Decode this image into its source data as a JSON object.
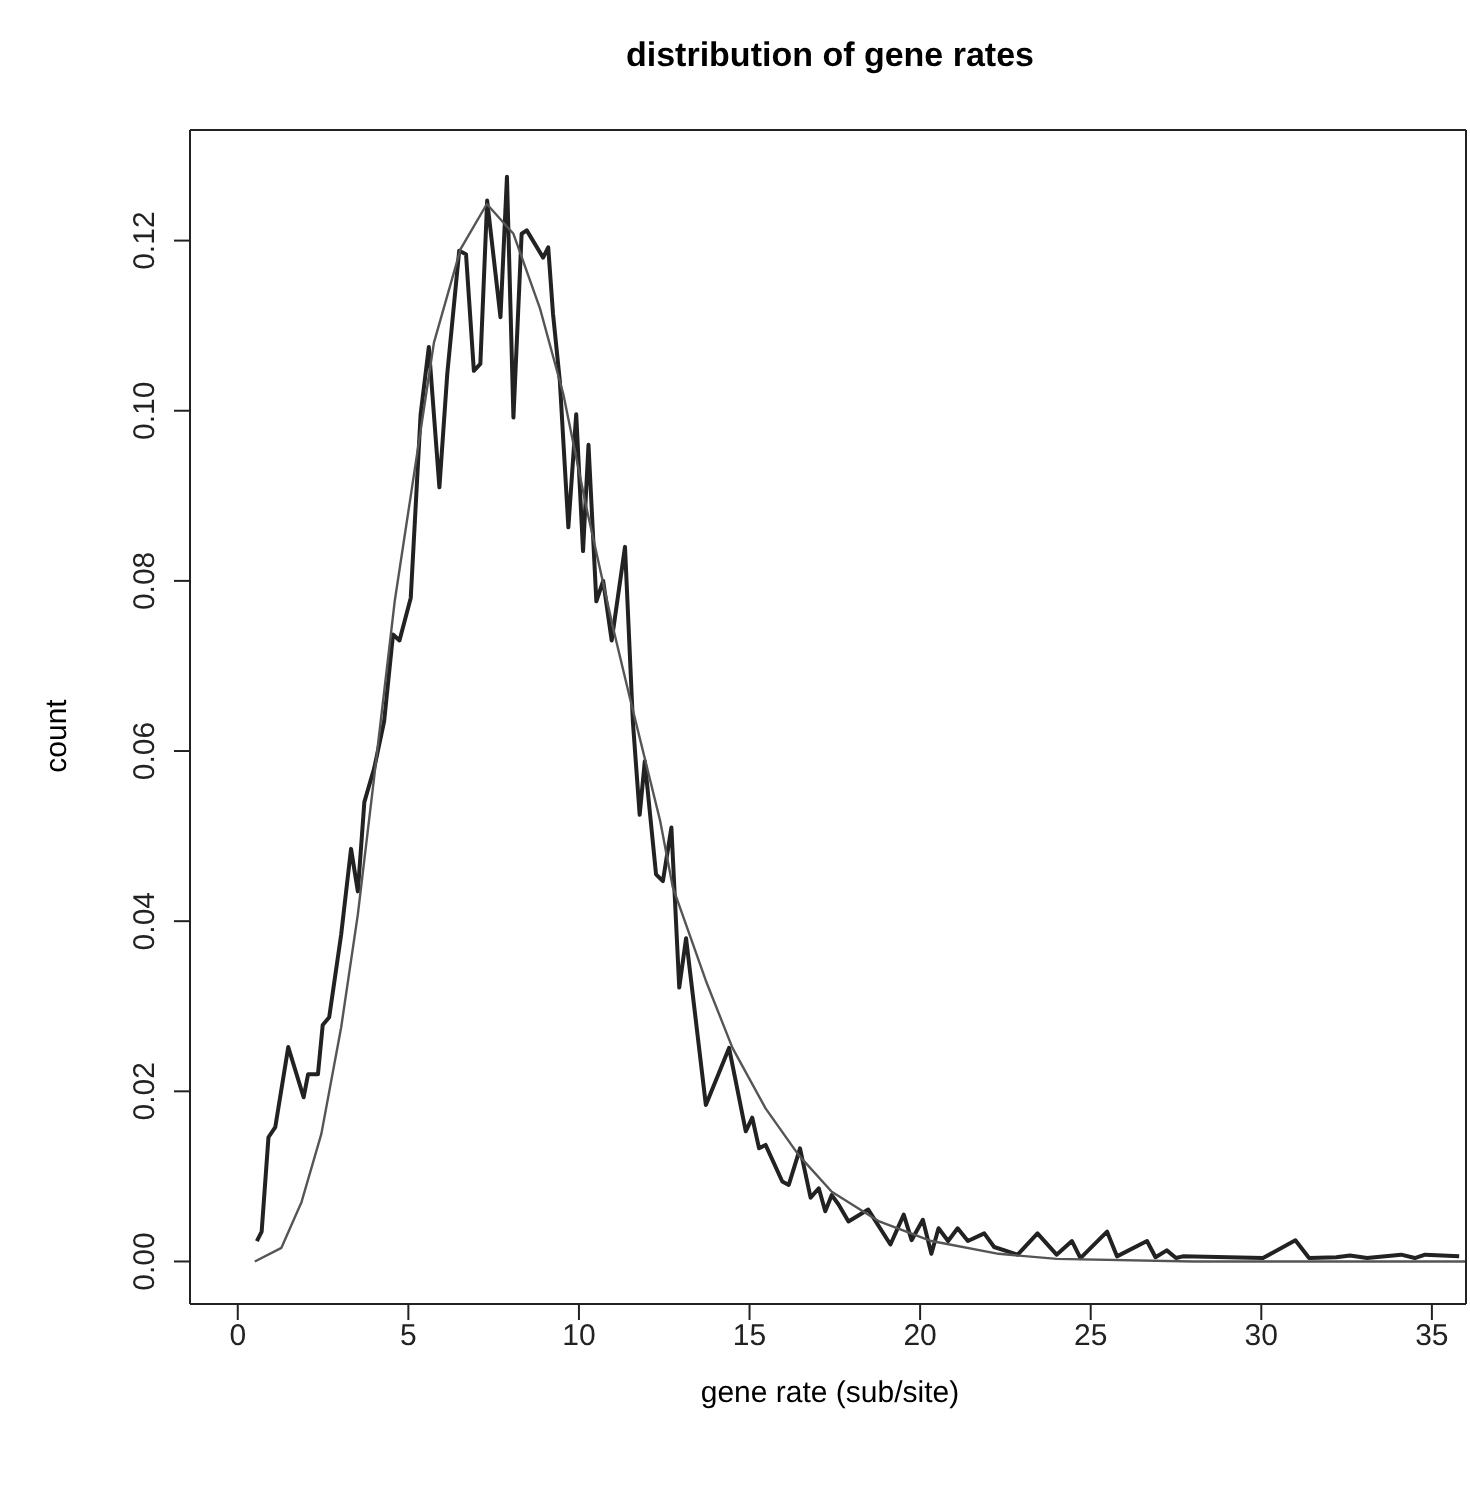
{
  "chart_data": {
    "type": "line",
    "title": "distribution of gene rates",
    "xlabel": "gene rate (sub/site)",
    "ylabel": "count",
    "xlim": [
      -1.4,
      36
    ],
    "ylim": [
      -0.005,
      0.133
    ],
    "xticks": [
      0,
      5,
      10,
      15,
      20,
      25,
      30,
      35
    ],
    "yticks": [
      {
        "value": 0,
        "label": "0.00"
      },
      {
        "value": 0.02,
        "label": "0.02"
      },
      {
        "value": 0.04,
        "label": "0.04"
      },
      {
        "value": 0.06,
        "label": "0.06"
      },
      {
        "value": 0.08,
        "label": "0.08"
      },
      {
        "value": 0.1,
        "label": "0.10"
      },
      {
        "value": 0.12,
        "label": "0.12"
      }
    ],
    "series": [
      {
        "color": "#222222",
        "x": [
          0.56,
          0.7,
          0.9,
          1.1,
          1.48,
          1.93,
          2.06,
          2.35,
          2.49,
          2.68,
          3.03,
          3.32,
          3.52,
          3.71,
          4.0,
          4.29,
          4.55,
          4.74,
          5.07,
          5.36,
          5.6,
          5.91,
          6.14,
          6.49,
          6.69,
          6.92,
          7.11,
          7.31,
          7.7,
          7.89,
          8.08,
          8.32,
          8.47,
          8.95,
          9.1,
          9.24,
          9.44,
          9.69,
          9.92,
          10.12,
          10.28,
          10.51,
          10.71,
          10.96,
          11.35,
          11.58,
          11.78,
          11.93,
          12.26,
          12.46,
          12.71,
          12.94,
          13.14,
          13.72,
          14.4,
          14.89,
          15.08,
          15.28,
          15.47,
          15.96,
          16.15,
          16.48,
          16.79,
          17.03,
          17.22,
          17.41,
          17.61,
          17.9,
          18.48,
          19.13,
          19.52,
          19.75,
          20.08,
          20.33,
          20.54,
          20.82,
          21.1,
          21.4,
          21.88,
          22.17,
          22.86,
          23.44,
          24.0,
          24.45,
          24.7,
          25.48,
          25.77,
          26.65,
          26.9,
          27.23,
          27.5,
          27.7,
          30.05,
          31.0,
          31.4,
          32.2,
          32.6,
          33.1,
          34.1,
          34.5,
          34.8,
          35.8
        ],
        "values": [
          0.0024,
          0.0035,
          0.0146,
          0.0158,
          0.0252,
          0.0193,
          0.022,
          0.022,
          0.0278,
          0.0287,
          0.0384,
          0.0485,
          0.0435,
          0.054,
          0.058,
          0.0635,
          0.0737,
          0.073,
          0.078,
          0.0996,
          0.1075,
          0.091,
          0.1043,
          0.1188,
          0.1184,
          0.1047,
          0.1055,
          0.1247,
          0.111,
          0.1275,
          0.0992,
          0.1208,
          0.1212,
          0.118,
          0.1192,
          0.1114,
          0.1035,
          0.0863,
          0.0996,
          0.0835,
          0.096,
          0.0776,
          0.08,
          0.073,
          0.084,
          0.0635,
          0.0525,
          0.0588,
          0.0455,
          0.0447,
          0.051,
          0.0322,
          0.038,
          0.0184,
          0.0251,
          0.0153,
          0.0169,
          0.0133,
          0.0137,
          0.0094,
          0.009,
          0.0133,
          0.0075,
          0.0086,
          0.0059,
          0.0078,
          0.0067,
          0.0047,
          0.0061,
          0.002,
          0.0055,
          0.0025,
          0.0049,
          0.0009,
          0.0039,
          0.0024,
          0.0039,
          0.0024,
          0.0033,
          0.0017,
          0.0008,
          0.0033,
          0.0008,
          0.0024,
          0.0004,
          0.0035,
          0.0006,
          0.0024,
          0.0005,
          0.0013,
          0.0004,
          0.0006,
          0.0004,
          0.0025,
          0.0004,
          0.0005,
          0.0007,
          0.0004,
          0.0008,
          0.0004,
          0.0008,
          0.0006
        ]
      },
      {
        "color": "#555555",
        "x": [
          0.5,
          1.28,
          1.87,
          2.45,
          3.03,
          3.52,
          4.0,
          4.6,
          5.07,
          5.75,
          6.53,
          7.3,
          8.08,
          8.86,
          9.54,
          10.22,
          11.0,
          11.49,
          12.38,
          12.75,
          13.72,
          14.5,
          15.47,
          16.44,
          17.41,
          18.8,
          20.33,
          22.3,
          24.0,
          28.0,
          36.0
        ],
        "values": [
          0.0,
          0.0016,
          0.007,
          0.015,
          0.0275,
          0.0408,
          0.057,
          0.0776,
          0.09,
          0.108,
          0.119,
          0.1243,
          0.1208,
          0.112,
          0.102,
          0.0886,
          0.0745,
          0.0663,
          0.0518,
          0.044,
          0.033,
          0.0251,
          0.018,
          0.0125,
          0.0082,
          0.0047,
          0.0024,
          0.0009,
          0.0003,
          0.0,
          0.0
        ]
      }
    ]
  }
}
